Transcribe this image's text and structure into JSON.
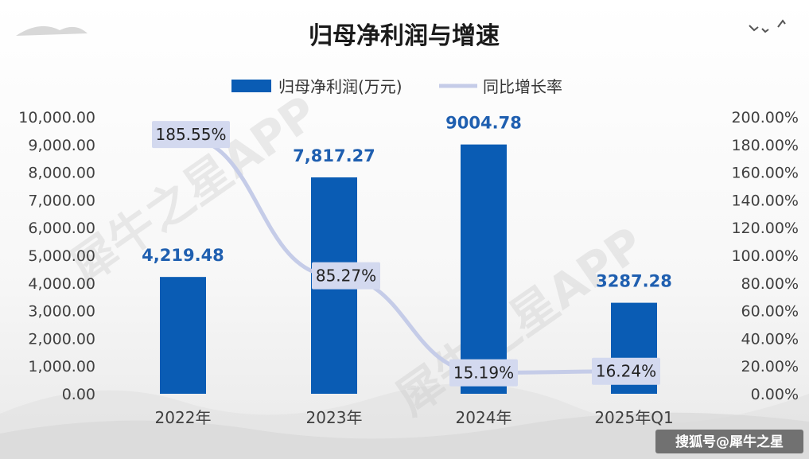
{
  "chart_data": {
    "type": "bar",
    "title": "归母净利润与增速",
    "categories": [
      "2022年",
      "2023年",
      "2024年",
      "2025年Q1"
    ],
    "series": [
      {
        "name": "归母净利润(万元)",
        "type": "bar",
        "axis": "left",
        "values": [
          4219.48,
          7817.27,
          9004.78,
          3287.28
        ],
        "labels": [
          "4,219.48",
          "7,817.27",
          "9004.78",
          "3287.28"
        ]
      },
      {
        "name": "同比增长率",
        "type": "line",
        "axis": "right",
        "values": [
          185.55,
          85.27,
          15.19,
          16.24
        ],
        "labels": [
          "185.55%",
          "85.27%",
          "15.19%",
          "16.24%"
        ]
      }
    ],
    "y_left": {
      "ylim": [
        0,
        10000
      ],
      "ticks": [
        "0.00",
        "1,000.00",
        "2,000.00",
        "3,000.00",
        "4,000.00",
        "5,000.00",
        "6,000.00",
        "7,000.00",
        "8,000.00",
        "9,000.00",
        "10,000.00"
      ]
    },
    "y_right": {
      "ylim": [
        0,
        200
      ],
      "ticks": [
        "0.00%",
        "20.00%",
        "40.00%",
        "60.00%",
        "80.00%",
        "100.00%",
        "120.00%",
        "140.00%",
        "160.00%",
        "180.00%",
        "200.00%"
      ]
    },
    "legend_position": "top-center",
    "grid": false
  },
  "colors": {
    "bar": "#0a5cb4",
    "line": "#c5cce8",
    "line_label_bg": "#d3d9ef"
  },
  "watermark": "犀牛之星APP",
  "credit": "搜狐号@犀牛之星"
}
